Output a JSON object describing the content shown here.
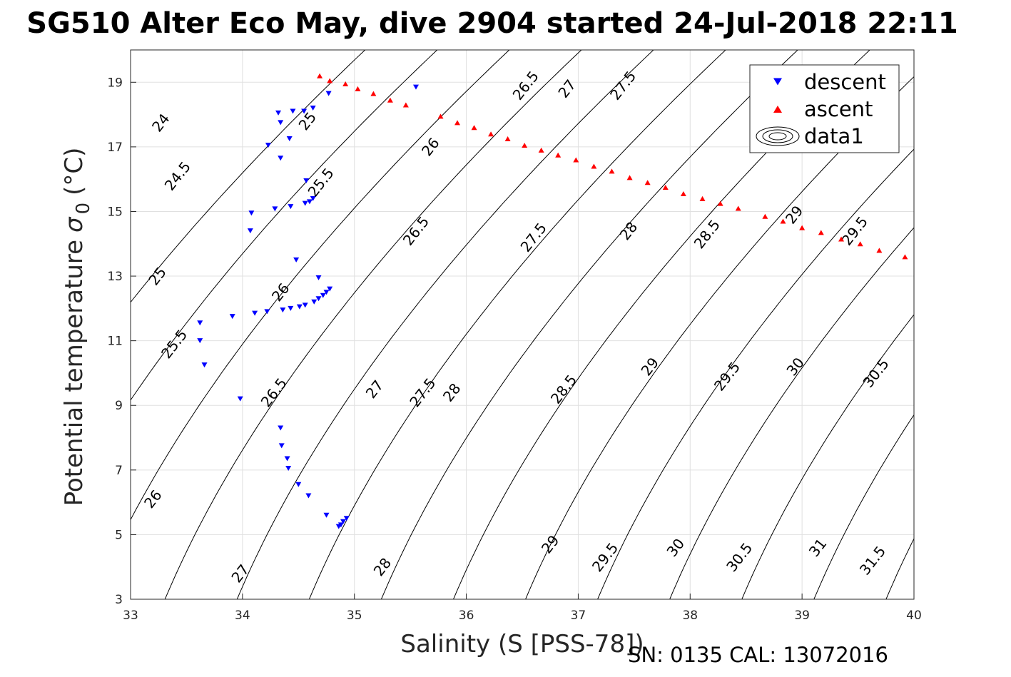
{
  "chart_data": {
    "type": "scatter",
    "title": "SG510 Alter Eco May, dive 2904 started 24-Jul-2018 22:11",
    "xlabel": "Salinity (S [PSS-78])",
    "ylabel_main": "Potential temperature",
    "ylabel_symbol": "σ",
    "ylabel_subscript": "0",
    "ylabel_unit": "(°C)",
    "footer": "SN: 0135  CAL: 13072016",
    "xlim": [
      33,
      40
    ],
    "ylim": [
      3,
      20
    ],
    "x_ticks": [
      33,
      34,
      35,
      36,
      37,
      38,
      39,
      40
    ],
    "x_tick_labels": [
      "33",
      "34",
      "35",
      "36",
      "37",
      "38",
      "39",
      "40"
    ],
    "y_ticks": [
      3,
      5,
      7,
      9,
      11,
      13,
      15,
      17,
      19
    ],
    "y_tick_labels": [
      "3",
      "5",
      "7",
      "9",
      "11",
      "13",
      "15",
      "17",
      "19"
    ],
    "grid": true,
    "legend_placement": "top-right",
    "legend": [
      "descent",
      "ascent",
      "data1"
    ],
    "colors": {
      "descent": "#0000ff",
      "ascent": "#ff0000",
      "contour": "#000000",
      "grid": "#e0e0e0",
      "axis": "#262626"
    },
    "contour_levels": [
      24,
      24.5,
      25,
      25.5,
      26,
      26.5,
      27,
      27.5,
      28,
      28.5,
      29,
      29.5,
      30,
      30.5,
      31,
      31.5
    ],
    "contour_labels": [
      {
        "text": "24",
        "s": 33.27,
        "t": 17.75
      },
      {
        "text": "24.5",
        "s": 33.42,
        "t": 16.1
      },
      {
        "text": "25",
        "s": 33.24,
        "t": 13.0
      },
      {
        "text": "25.5",
        "s": 33.39,
        "t": 10.9
      },
      {
        "text": "26",
        "s": 33.2,
        "t": 6.1
      },
      {
        "text": "25",
        "s": 34.58,
        "t": 17.8
      },
      {
        "text": "25.5",
        "s": 34.7,
        "t": 15.9
      },
      {
        "text": "26",
        "s": 34.34,
        "t": 12.5
      },
      {
        "text": "26.5",
        "s": 34.28,
        "t": 9.4
      },
      {
        "text": "27",
        "s": 33.98,
        "t": 3.8
      },
      {
        "text": "26",
        "s": 35.68,
        "t": 17.0
      },
      {
        "text": "26.5",
        "s": 36.53,
        "t": 18.9
      },
      {
        "text": "27",
        "s": 36.9,
        "t": 18.8
      },
      {
        "text": "27.5",
        "s": 37.4,
        "t": 18.9
      },
      {
        "text": "26.5",
        "s": 35.55,
        "t": 14.4
      },
      {
        "text": "27",
        "s": 35.18,
        "t": 9.5
      },
      {
        "text": "27.5",
        "s": 36.6,
        "t": 14.2
      },
      {
        "text": "28",
        "s": 37.45,
        "t": 14.4
      },
      {
        "text": "28.5",
        "s": 38.15,
        "t": 14.3
      },
      {
        "text": "29",
        "s": 38.93,
        "t": 14.9
      },
      {
        "text": "29.5",
        "s": 39.47,
        "t": 14.4
      },
      {
        "text": "27.5",
        "s": 35.61,
        "t": 9.4
      },
      {
        "text": "28",
        "s": 35.87,
        "t": 9.4
      },
      {
        "text": "28.5",
        "s": 36.87,
        "t": 9.5
      },
      {
        "text": "28",
        "s": 35.25,
        "t": 4.0
      },
      {
        "text": "29",
        "s": 37.64,
        "t": 10.2
      },
      {
        "text": "29.5",
        "s": 38.33,
        "t": 9.9
      },
      {
        "text": "30",
        "s": 38.94,
        "t": 10.2
      },
      {
        "text": "30.5",
        "s": 39.66,
        "t": 10.0
      },
      {
        "text": "29",
        "s": 36.75,
        "t": 4.7
      },
      {
        "text": "29.5",
        "s": 37.24,
        "t": 4.3
      },
      {
        "text": "30",
        "s": 37.87,
        "t": 4.6
      },
      {
        "text": "30.5",
        "s": 38.44,
        "t": 4.3
      },
      {
        "text": "31",
        "s": 39.14,
        "t": 4.6
      },
      {
        "text": "31.5",
        "s": 39.63,
        "t": 4.2
      }
    ],
    "series": [
      {
        "name": "descent",
        "marker": "triangle-down",
        "points": [
          [
            35.55,
            18.85
          ],
          [
            34.77,
            18.65
          ],
          [
            34.63,
            18.2
          ],
          [
            34.55,
            18.1
          ],
          [
            34.45,
            18.1
          ],
          [
            34.32,
            18.05
          ],
          [
            34.34,
            17.75
          ],
          [
            34.42,
            17.25
          ],
          [
            34.23,
            17.05
          ],
          [
            34.34,
            16.65
          ],
          [
            34.57,
            15.95
          ],
          [
            34.63,
            15.4
          ],
          [
            34.6,
            15.3
          ],
          [
            34.56,
            15.25
          ],
          [
            34.43,
            15.15
          ],
          [
            34.29,
            15.08
          ],
          [
            34.08,
            14.95
          ],
          [
            34.07,
            14.4
          ],
          [
            34.48,
            13.5
          ],
          [
            34.68,
            12.95
          ],
          [
            34.78,
            12.6
          ],
          [
            34.75,
            12.5
          ],
          [
            34.72,
            12.4
          ],
          [
            34.68,
            12.3
          ],
          [
            34.64,
            12.2
          ],
          [
            34.56,
            12.1
          ],
          [
            34.51,
            12.05
          ],
          [
            34.43,
            12.0
          ],
          [
            34.36,
            11.95
          ],
          [
            34.22,
            11.9
          ],
          [
            34.11,
            11.85
          ],
          [
            33.91,
            11.75
          ],
          [
            33.62,
            11.55
          ],
          [
            33.62,
            11.0
          ],
          [
            33.66,
            10.25
          ],
          [
            33.98,
            9.2
          ],
          [
            34.34,
            8.3
          ],
          [
            34.35,
            7.75
          ],
          [
            34.4,
            7.35
          ],
          [
            34.41,
            7.05
          ],
          [
            34.5,
            6.55
          ],
          [
            34.59,
            6.2
          ],
          [
            34.75,
            5.6
          ],
          [
            34.93,
            5.5
          ],
          [
            34.9,
            5.4
          ],
          [
            34.88,
            5.3
          ],
          [
            34.86,
            5.25
          ]
        ]
      },
      {
        "name": "ascent",
        "marker": "triangle-up",
        "points": [
          [
            34.69,
            19.2
          ],
          [
            34.78,
            19.05
          ],
          [
            34.92,
            18.95
          ],
          [
            35.03,
            18.8
          ],
          [
            35.17,
            18.65
          ],
          [
            35.32,
            18.45
          ],
          [
            35.46,
            18.3
          ],
          [
            35.77,
            17.95
          ],
          [
            35.92,
            17.75
          ],
          [
            36.07,
            17.6
          ],
          [
            36.22,
            17.4
          ],
          [
            36.37,
            17.25
          ],
          [
            36.52,
            17.05
          ],
          [
            36.67,
            16.9
          ],
          [
            36.82,
            16.75
          ],
          [
            36.98,
            16.6
          ],
          [
            37.14,
            16.4
          ],
          [
            37.3,
            16.25
          ],
          [
            37.46,
            16.05
          ],
          [
            37.62,
            15.9
          ],
          [
            37.78,
            15.75
          ],
          [
            37.94,
            15.55
          ],
          [
            38.11,
            15.4
          ],
          [
            38.27,
            15.25
          ],
          [
            38.43,
            15.1
          ],
          [
            38.67,
            14.85
          ],
          [
            38.83,
            14.7
          ],
          [
            39.0,
            14.5
          ],
          [
            39.17,
            14.35
          ],
          [
            39.35,
            14.15
          ],
          [
            39.52,
            14.0
          ],
          [
            39.69,
            13.8
          ],
          [
            39.92,
            13.6
          ]
        ]
      }
    ]
  }
}
